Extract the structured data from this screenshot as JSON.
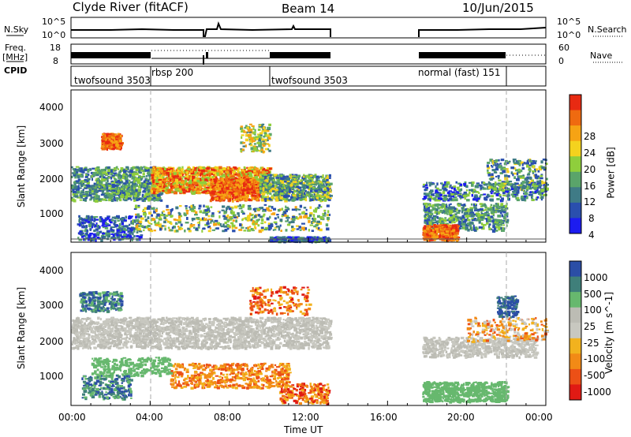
{
  "header": {
    "station": "Clyde River (fitACF)",
    "beam": "Beam 14",
    "date": "10/Jun/2015"
  },
  "strip_labels": {
    "nsky": "N.Sky",
    "nsky_ticks": [
      "10^5",
      "10^0"
    ],
    "nsearch": "N.Search",
    "nsearch_ticks": [
      "10^5",
      "10^0"
    ],
    "freq": "Freq.",
    "freq_unit": "[MHz]",
    "freq_ticks": [
      "18",
      "8"
    ],
    "nave": "Nave",
    "nave_ticks": [
      "60",
      "0"
    ],
    "cpid": "CPID"
  },
  "chart_data": [
    {
      "type": "heatmap",
      "name": "power",
      "ylabel": "Slant Range [km]",
      "yticks": [
        "4000",
        "3000",
        "2000",
        "1000"
      ],
      "ylim": [
        180,
        4500
      ],
      "colorbar_label": "Power [dB]",
      "colorbar_ticks": [
        "28",
        "24",
        "20",
        "16",
        "12",
        "8",
        "4"
      ],
      "colors": [
        "#1c1cf0",
        "#2a4fae",
        "#3f7b86",
        "#5aa46a",
        "#8fce3c",
        "#f4d21e",
        "#f6a314",
        "#ef6a10",
        "#e82a12"
      ]
    },
    {
      "type": "heatmap",
      "name": "velocity",
      "ylabel": "Slant Range [km]",
      "yticks": [
        "4000",
        "3000",
        "2000",
        "1000"
      ],
      "ylim": [
        180,
        4500
      ],
      "colorbar_label": "Velocity [m s^-1]",
      "colorbar_ticks": [
        "1000",
        "500",
        "100",
        "25",
        "-25",
        "-100",
        "-500",
        "-1000"
      ],
      "colors": [
        "#2b4ea6",
        "#3f7f7a",
        "#67b86e",
        "#bcbcb4",
        "#c8c8c0",
        "#f2b21e",
        "#f28a16",
        "#ec5016",
        "#e01a14"
      ]
    }
  ],
  "cpid_segments": [
    {
      "label": "twofsound 3503",
      "start_h": 0.0,
      "end_h": 4.0
    },
    {
      "label": "rbsp 200",
      "start_h": 4.0,
      "end_h": 10.0
    },
    {
      "label": "twofsound 3503",
      "start_h": 10.0,
      "end_h": 13.05
    },
    {
      "label": "normal (fast) 151",
      "start_h": 17.75,
      "end_h": 22.0
    }
  ],
  "data_gap_hours": [
    13.05,
    17.75
  ],
  "xaxis": {
    "label": "Time UT",
    "ticks": [
      "00:00",
      "04:00",
      "08:00",
      "12:00",
      "16:00",
      "20:00",
      "00:00"
    ],
    "range_hours": [
      0,
      24
    ]
  }
}
